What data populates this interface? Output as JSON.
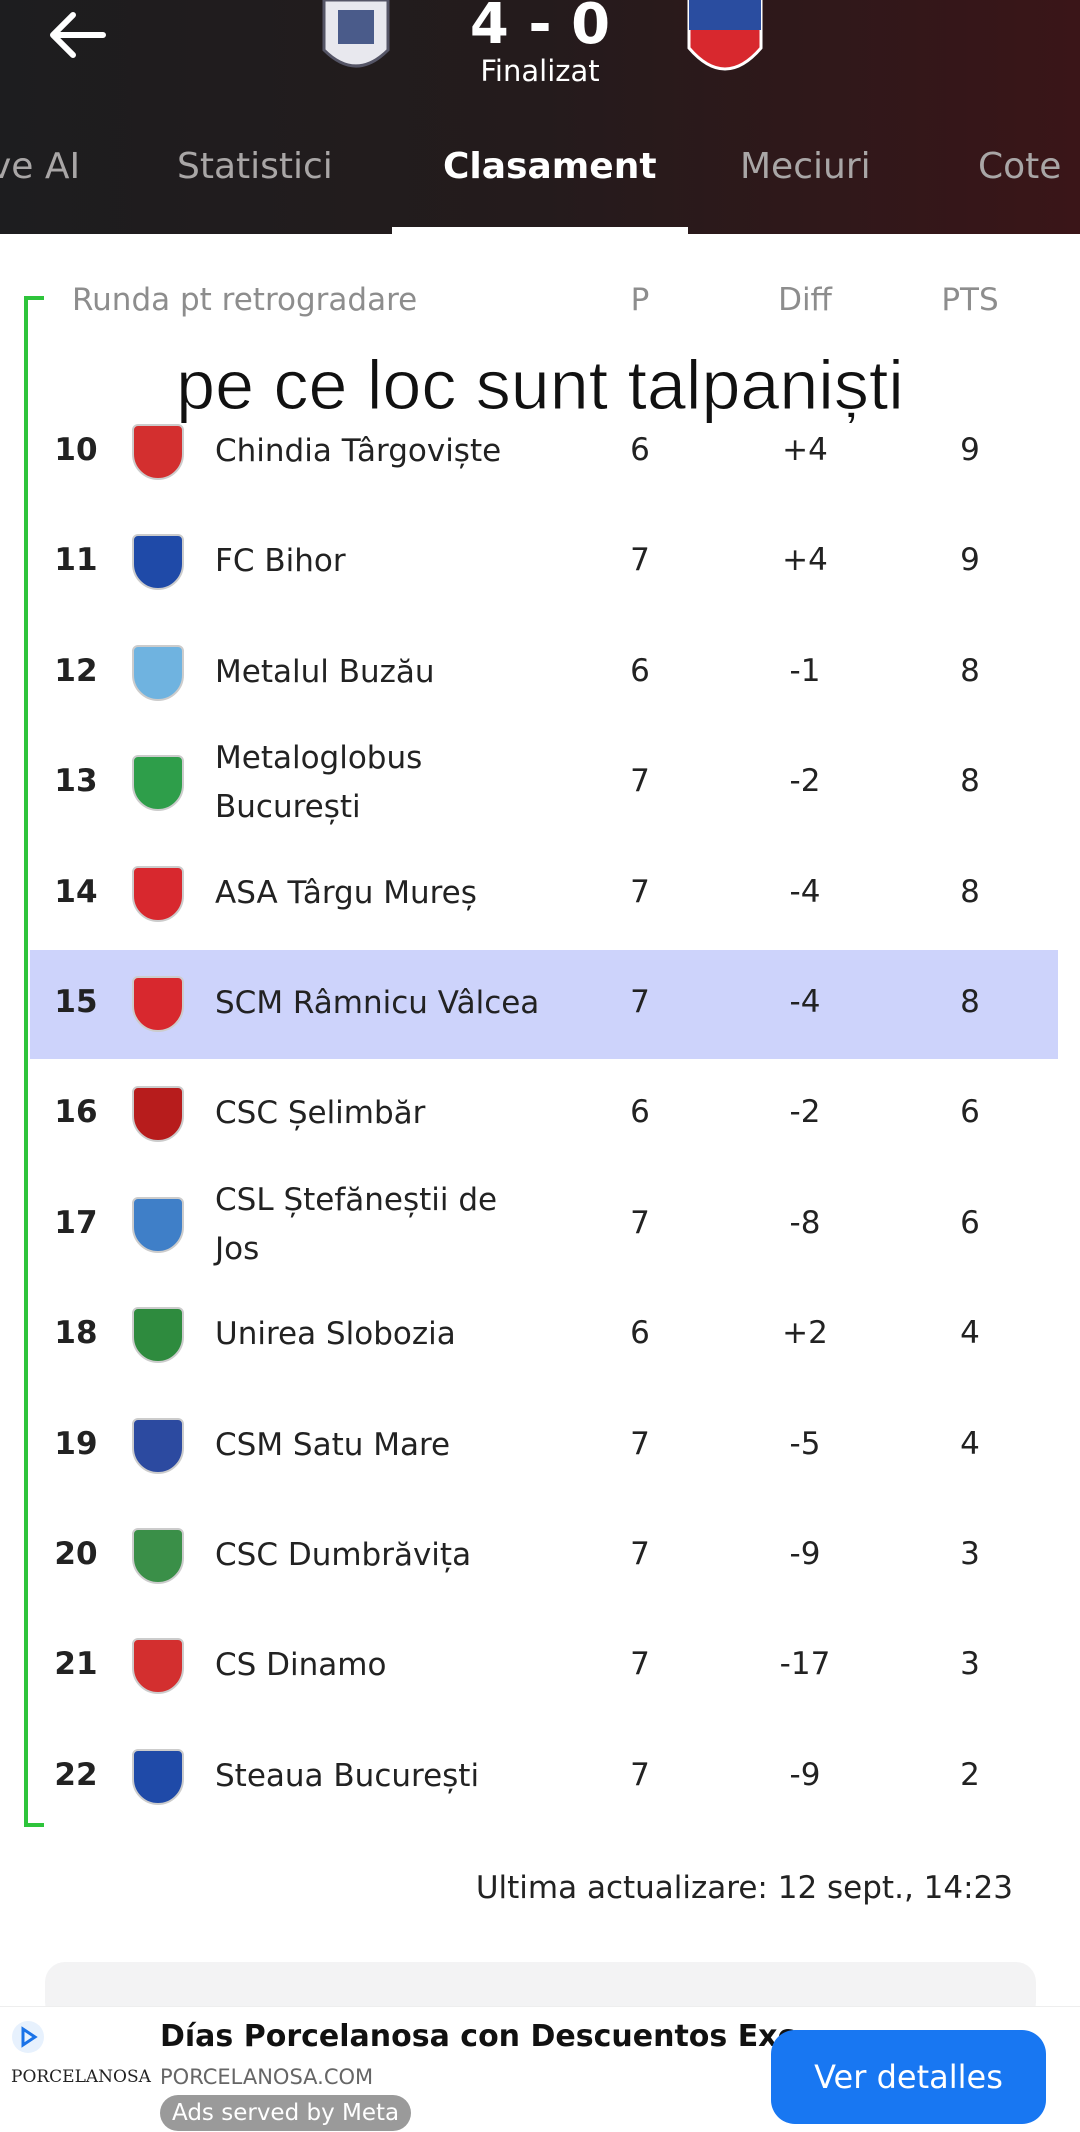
{
  "header": {
    "score": "4 - 0",
    "status": "Finalizat",
    "tabs": [
      "ve AI",
      "Statistici",
      "Clasament",
      "Meciuri",
      "Cote"
    ]
  },
  "table": {
    "group": "Runda pt retrogradare",
    "columns": [
      "P",
      "Diff",
      "PTS"
    ],
    "rows": [
      [
        10,
        "Chindia Târgoviște",
        6,
        "+4",
        9
      ],
      [
        11,
        "FC Bihor",
        7,
        "+4",
        9
      ],
      [
        12,
        "Metalul Buzău",
        6,
        "-1",
        8
      ],
      [
        13,
        "Metaloglobus București",
        7,
        "-2",
        8
      ],
      [
        14,
        "ASA Târgu Mureș",
        7,
        "-4",
        8
      ],
      [
        15,
        "SCM Râmnicu Vâlcea",
        7,
        "-4",
        8
      ],
      [
        16,
        "CSC Șelimbăr",
        6,
        "-2",
        6
      ],
      [
        17,
        "CSL Ștefăneștii de Jos",
        7,
        "-8",
        6
      ],
      [
        18,
        "Unirea Slobozia",
        6,
        "+2",
        4
      ],
      [
        19,
        "CSM Satu Mare",
        7,
        "-5",
        4
      ],
      [
        20,
        "CSC Dumbrăvița",
        7,
        "-9",
        3
      ],
      [
        21,
        "CS Dinamo",
        7,
        "-17",
        3
      ],
      [
        22,
        "Steaua București",
        7,
        "-9",
        2
      ]
    ],
    "updated": "Ultima actualizare: 12 sept., 14:23"
  },
  "caption": "pe ce loc sunt talpaniști",
  "ad": {
    "brand": "PORCELANOSA",
    "title": "Días Porcelanosa con Descuentos Exc...",
    "url": "PORCELANOSA.COM",
    "attribution": "Ads served by Meta",
    "button": "Ver detalles"
  }
}
